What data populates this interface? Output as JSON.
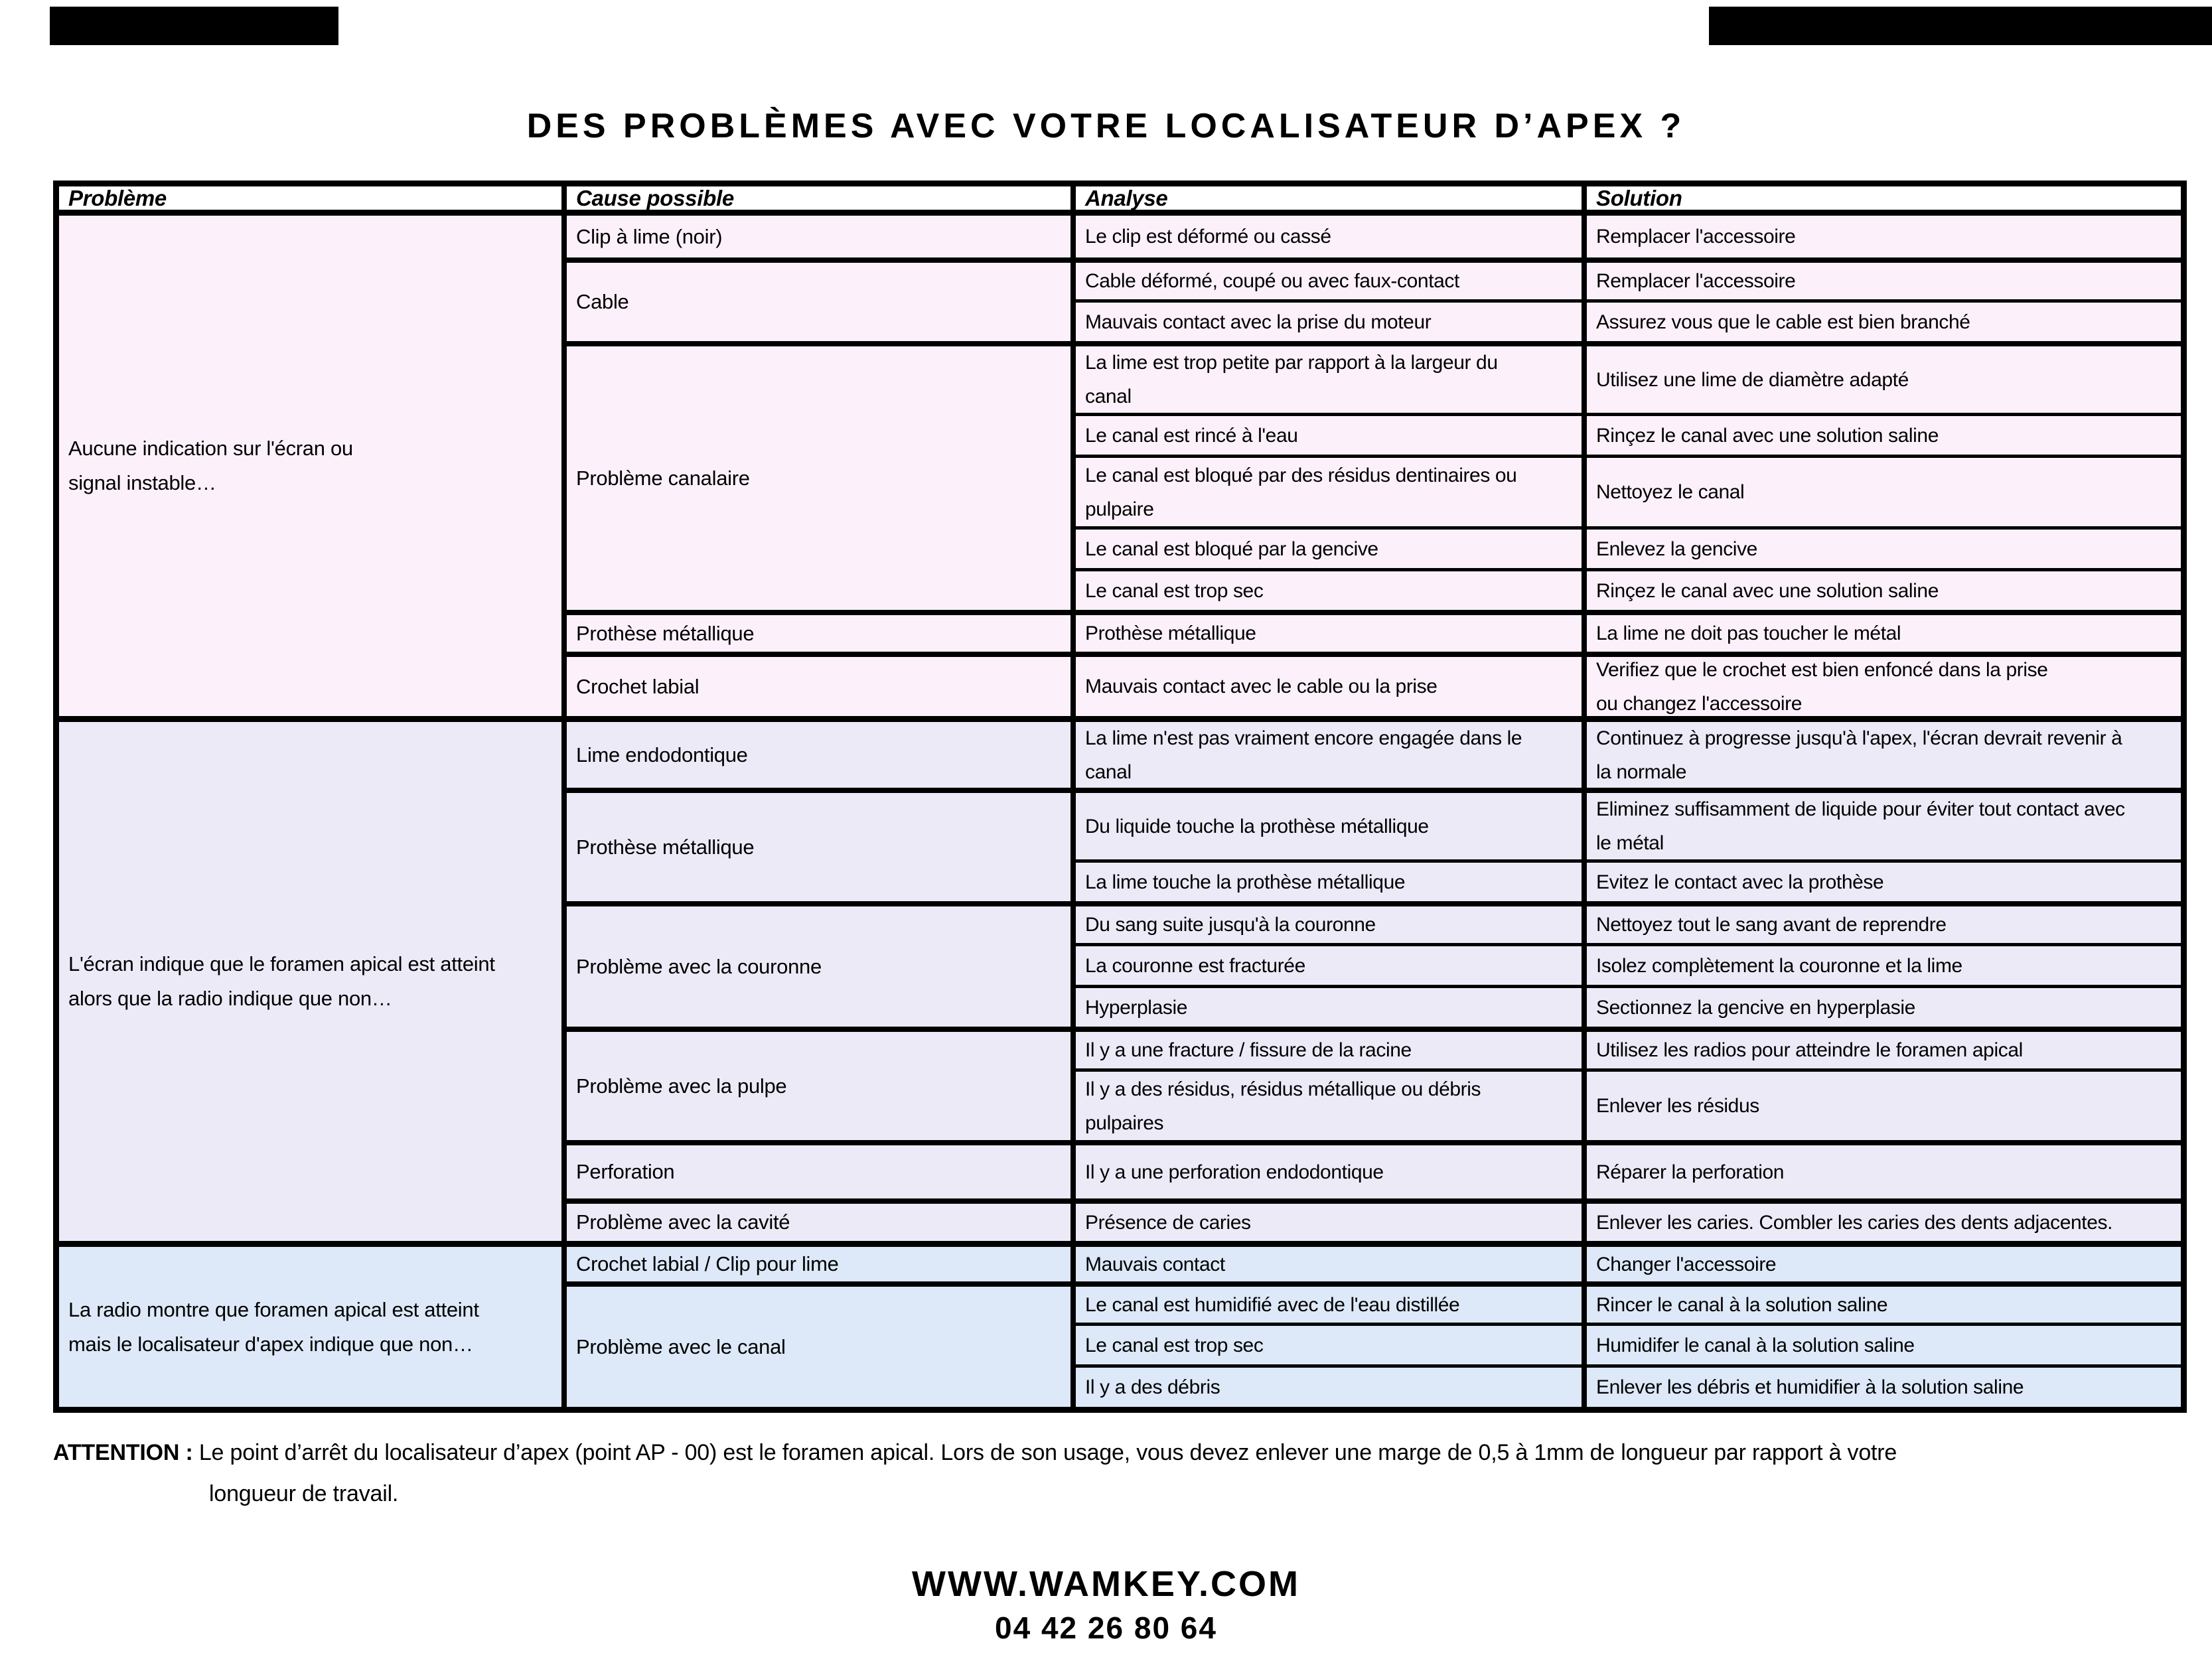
{
  "title": "DES PROBLÈMES AVEC VOTRE LOCALISATEUR D’APEX ?",
  "colors": {
    "section1_bg": "#fcf1fb",
    "section2_bg": "#edeaf8",
    "section3_bg": "#dde8f8",
    "border": "#000000",
    "scan_mark": "#000000"
  },
  "table": {
    "headers": [
      "Problème",
      "Cause possible",
      "Analyse",
      "Solution"
    ],
    "sections": [
      {
        "problem": "Aucune indication sur l'écran ou\nsignal instable…",
        "bg": "#fcf1fb",
        "groups": [
          {
            "cause": "Clip à lime (noir)",
            "rows": [
              {
                "analyse": "Le clip est déformé ou cassé",
                "solution": "Remplacer l'accessoire",
                "h": 63
              }
            ]
          },
          {
            "cause": "Cable",
            "rows": [
              {
                "analyse": "Cable déformé, coupé ou avec faux-contact",
                "solution": "Remplacer l'accessoire",
                "h": 63
              },
              {
                "analyse": "Mauvais contact avec la prise du moteur",
                "solution": "Assurez vous que le cable est bien branché",
                "h": 63
              }
            ]
          },
          {
            "cause": "Problème canalaire",
            "rows": [
              {
                "analyse": "La lime est trop petite par rapport à la largeur du\ncanal",
                "solution": "Utilisez une lime de diamètre adapté",
                "h": 108
              },
              {
                "analyse": "Le canal est rincé à l'eau",
                "solution": "Rinçez le canal avec une solution saline",
                "h": 63
              },
              {
                "analyse": "Le canal est bloqué par des résidus dentinaires ou\npulpaire",
                "solution": "Nettoyez le canal",
                "h": 108
              },
              {
                "analyse": "Le canal est bloqué par la gencive",
                "solution": "Enlevez la gencive",
                "h": 63
              },
              {
                "analyse": "Le canal est trop sec",
                "solution": "Rinçez le canal avec une solution saline",
                "h": 63
              }
            ]
          },
          {
            "cause": "Prothèse métallique",
            "rows": [
              {
                "analyse": "Prothèse métallique",
                "solution": "La lime ne doit pas toucher le métal",
                "h": 63
              }
            ]
          },
          {
            "cause": "Crochet labial",
            "rows": [
              {
                "analyse": "Mauvais contact avec le cable ou la prise",
                "solution": "Verifiez que le crochet est bien enfoncé dans la prise\nou changez l'accessoire",
                "h": 97
              }
            ]
          }
        ]
      },
      {
        "problem": "L'écran indique que le foramen apical est atteint\nalors que la radio indique que non…",
        "bg": "#edeaf8",
        "groups": [
          {
            "cause": "Lime endodontique",
            "rows": [
              {
                "analyse": "La lime n'est pas vraiment encore engagée dans le\ncanal",
                "solution": "Continuez à progresse jusqu'à l'apex, l'écran devrait revenir à\nla normale",
                "h": 108
              }
            ]
          },
          {
            "cause": "Prothèse métallique",
            "rows": [
              {
                "analyse": "Du liquide touche la prothèse métallique",
                "solution": "Eliminez suffisamment de liquide pour éviter tout contact avec\nle métal",
                "h": 108
              },
              {
                "analyse": "La lime touche la prothèse métallique",
                "solution": "Evitez le contact avec la prothèse",
                "h": 63
              }
            ]
          },
          {
            "cause": "Problème avec la couronne",
            "rows": [
              {
                "analyse": "Du sang suite jusqu'à la couronne",
                "solution": "Nettoyez tout le sang avant de reprendre",
                "h": 63
              },
              {
                "analyse": "La couronne est fracturée",
                "solution": "Isolez complètement la couronne et la lime",
                "h": 63
              },
              {
                "analyse": "Hyperplasie",
                "solution": "Sectionnez la gencive en hyperplasie",
                "h": 63
              }
            ]
          },
          {
            "cause": "Problème avec la pulpe",
            "rows": [
              {
                "analyse": "Il y a une fracture / fissure de la racine",
                "solution": "Utilisez les radios pour atteindre le foramen apical",
                "h": 63
              },
              {
                "analyse": "Il y a des résidus, résidus métallique ou débris\npulpaires",
                "solution": "Enlever les résidus",
                "h": 108
              }
            ]
          },
          {
            "cause": "Perforation",
            "rows": [
              {
                "analyse": "Il y a une perforation endodontique",
                "solution": "Réparer la perforation",
                "h": 88
              }
            ]
          },
          {
            "cause": "Problème avec la cavité",
            "rows": [
              {
                "analyse": "Présence de caries",
                "solution": "Enlever les caries. Combler les caries des dents adjacentes.",
                "h": 64
              }
            ]
          }
        ]
      },
      {
        "problem": "La radio montre que foramen apical est atteint\nmais le localisateur d'apex indique que non…",
        "bg": "#dde8f8",
        "groups": [
          {
            "cause": "Crochet labial / Clip pour lime",
            "rows": [
              {
                "analyse": "Mauvais contact",
                "solution": "Changer l'accessoire",
                "h": 61
              }
            ]
          },
          {
            "cause": "Problème avec le canal",
            "rows": [
              {
                "analyse": "Le canal est humidifié avec de l'eau distillée",
                "solution": "Rincer le canal à la solution saline",
                "h": 62
              },
              {
                "analyse": "Le canal est trop sec",
                "solution": "Humidifer le canal à la solution saline",
                "h": 63
              },
              {
                "analyse": "Il y a des débris",
                "solution": "Enlever les débris et humidifier à la solution saline",
                "h": 64
              }
            ]
          }
        ]
      }
    ]
  },
  "attention": {
    "label": "ATTENTION :",
    "line1": "Le point d’arrêt du localisateur d’apex (point AP - 00) est le foramen apical. Lors de son usage, vous devez enlever une marge de 0,5 à 1mm de longueur par rapport à votre",
    "line2": "longueur de travail."
  },
  "footer": {
    "website": "WWW.WAMKEY.COM",
    "phone": "04 42 26 80 64"
  }
}
